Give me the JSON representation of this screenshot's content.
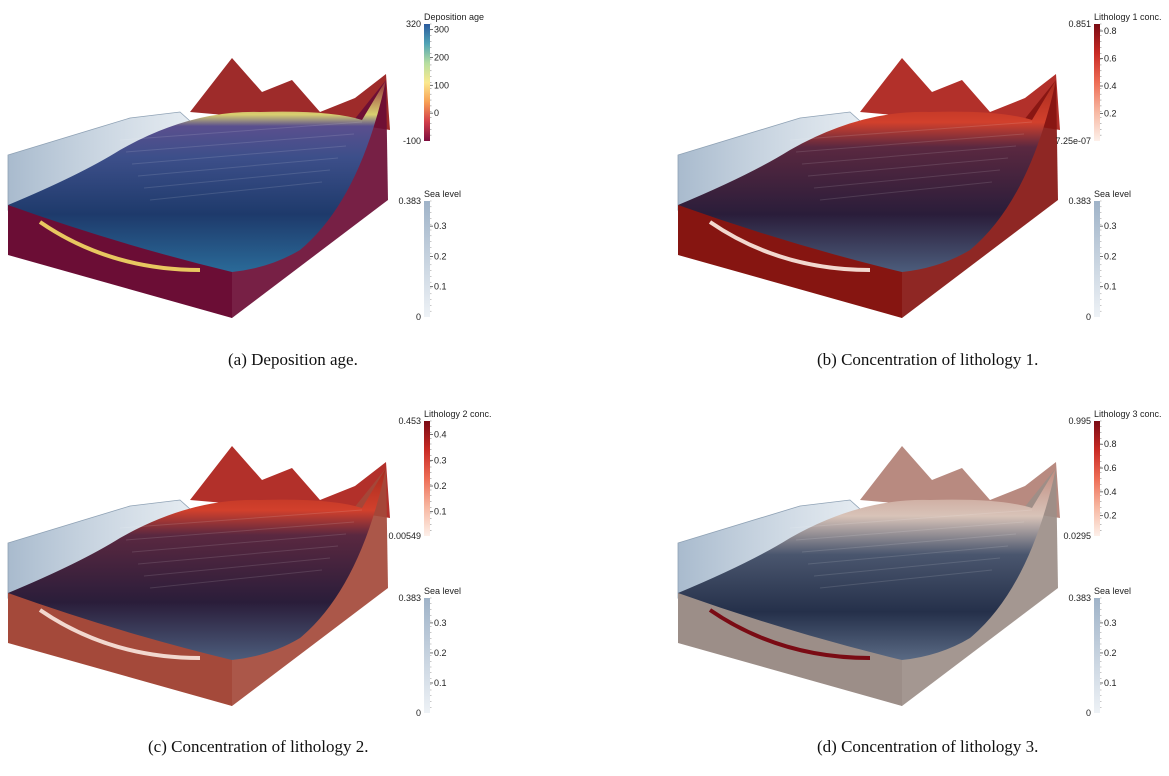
{
  "panels": [
    {
      "id": "a",
      "caption": "(a) Deposition age.",
      "top_scheme": "age",
      "side_color": "#6b0d35",
      "colorbar": {
        "title": "Deposition age",
        "max_label": "320",
        "min_label": "-100",
        "ticks": [
          "300",
          "200",
          "100",
          "0"
        ],
        "tick_values": [
          300,
          200,
          100,
          0
        ],
        "vmin": -100,
        "vmax": 320,
        "colors": [
          "#7e0d3f",
          "#d33f4a",
          "#f8a054",
          "#fbe98f",
          "#b5dea0",
          "#4fa3b5",
          "#2b5b9e"
        ]
      },
      "sealevel": {
        "title": "Sea level",
        "max_label": "0.383",
        "min_label": "0",
        "ticks": [
          "0.3",
          "0.2",
          "0.1"
        ],
        "tick_values": [
          0.3,
          0.2,
          0.1
        ],
        "vmin": 0,
        "vmax": 0.383
      }
    },
    {
      "id": "b",
      "caption": "(b) Concentration of lithology 1.",
      "top_scheme": "lith",
      "side_color": "#861511",
      "colorbar": {
        "title": "Lithology 1 conc.",
        "max_label": "0.851",
        "min_label": "7.25e-07",
        "ticks": [
          "0.8",
          "0.6",
          "0.4",
          "0.2"
        ],
        "tick_values": [
          0.8,
          0.6,
          0.4,
          0.2
        ],
        "vmin": 0,
        "vmax": 0.851,
        "colors": [
          "#fdf0ea",
          "#f7b8a2",
          "#ee6d55",
          "#c92a24",
          "#7a0b14"
        ]
      },
      "sealevel": {
        "title": "Sea level",
        "max_label": "0.383",
        "min_label": "0",
        "ticks": [
          "0.3",
          "0.2",
          "0.1"
        ],
        "tick_values": [
          0.3,
          0.2,
          0.1
        ],
        "vmin": 0,
        "vmax": 0.383
      }
    },
    {
      "id": "c",
      "caption": "(c) Concentration of lithology 2.",
      "top_scheme": "lith",
      "side_color": "#a4493a",
      "colorbar": {
        "title": "Lithology 2 conc.",
        "max_label": "0.453",
        "min_label": "0.00549",
        "ticks": [
          "0.4",
          "0.3",
          "0.2",
          "0.1"
        ],
        "tick_values": [
          0.4,
          0.3,
          0.2,
          0.1
        ],
        "vmin": 0.00549,
        "vmax": 0.453,
        "colors": [
          "#fdf0ea",
          "#f7b8a2",
          "#ee6d55",
          "#c92a24",
          "#7a0b14"
        ]
      },
      "sealevel": {
        "title": "Sea level",
        "max_label": "0.383",
        "min_label": "0",
        "ticks": [
          "0.3",
          "0.2",
          "0.1"
        ],
        "tick_values": [
          0.3,
          0.2,
          0.1
        ],
        "vmin": 0,
        "vmax": 0.383
      }
    },
    {
      "id": "d",
      "caption": "(d) Concentration of lithology 3.",
      "top_scheme": "lith3",
      "side_color": "#9c8e88",
      "colorbar": {
        "title": "Lithology 3 conc.",
        "max_label": "0.995",
        "min_label": "0.0295",
        "ticks": [
          "0.8",
          "0.6",
          "0.4",
          "0.2"
        ],
        "tick_values": [
          0.8,
          0.6,
          0.4,
          0.2
        ],
        "vmin": 0.0295,
        "vmax": 0.995,
        "colors": [
          "#fdf0ea",
          "#f7b8a2",
          "#ee6d55",
          "#c92a24",
          "#7a0b14"
        ]
      },
      "sealevel": {
        "title": "Sea level",
        "max_label": "0.383",
        "min_label": "0",
        "ticks": [
          "0.3",
          "0.2",
          "0.1"
        ],
        "tick_values": [
          0.3,
          0.2,
          0.1
        ],
        "vmin": 0,
        "vmax": 0.383
      }
    }
  ]
}
